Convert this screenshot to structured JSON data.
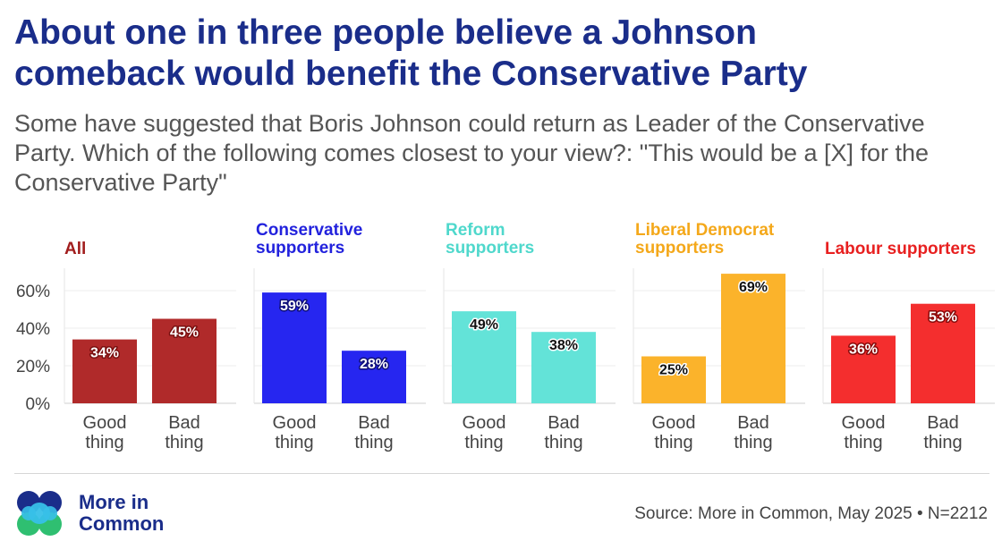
{
  "header": {
    "title": "About one in three people believe a Johnson comeback would benefit the Conservative Party",
    "subtitle": "Some have suggested that Boris Johnson could return as Leader of the Conservative Party. Which of the following comes closest to your view?: \"This would be a [X] for the Conservative Party\""
  },
  "footer": {
    "brand": "More in\nCommon",
    "source": "Source: More in Common, May 2025 • N=2212"
  },
  "chart_data": {
    "type": "bar",
    "ylim": [
      0,
      70
    ],
    "yticks": [
      0,
      20,
      40,
      60
    ],
    "ytick_labels": [
      "0%",
      "20%",
      "40%",
      "60%"
    ],
    "categories": [
      "Good\nthing",
      "Bad\nthing"
    ],
    "panels": [
      {
        "title": "All",
        "color": "#b02a2a",
        "title_color": "#a11d1d",
        "label_color": "#ffffff",
        "label_shadow": "#7a1010",
        "values": [
          34,
          45
        ],
        "labels": [
          "34%",
          "45%"
        ]
      },
      {
        "title": "Conservative\nsupporters",
        "color": "#2626f0",
        "title_color": "#2222dd",
        "label_color": "#ffffff",
        "label_shadow": "#10107a",
        "values": [
          59,
          28
        ],
        "labels": [
          "59%",
          "28%"
        ]
      },
      {
        "title": "Reform\nsupporters",
        "color": "#63e3d8",
        "title_color": "#4fd8cc",
        "label_color": "#111111",
        "label_shadow": "#ffffff",
        "values": [
          49,
          38
        ],
        "labels": [
          "49%",
          "38%"
        ]
      },
      {
        "title": "Liberal Democrat\nsupporters",
        "color": "#fbb32b",
        "title_color": "#f4a81a",
        "label_color": "#111111",
        "label_shadow": "#ffffff",
        "values": [
          25,
          69
        ],
        "labels": [
          "25%",
          "69%"
        ]
      },
      {
        "title": "Labour supporters",
        "color": "#f42e2e",
        "title_color": "#e82020",
        "label_color": "#ffffff",
        "label_shadow": "#8a0a0a",
        "values": [
          36,
          53
        ],
        "labels": [
          "36%",
          "53%"
        ]
      }
    ]
  },
  "logo_colors": [
    "#1a2d8a",
    "#37c0e8",
    "#2fbf71"
  ]
}
